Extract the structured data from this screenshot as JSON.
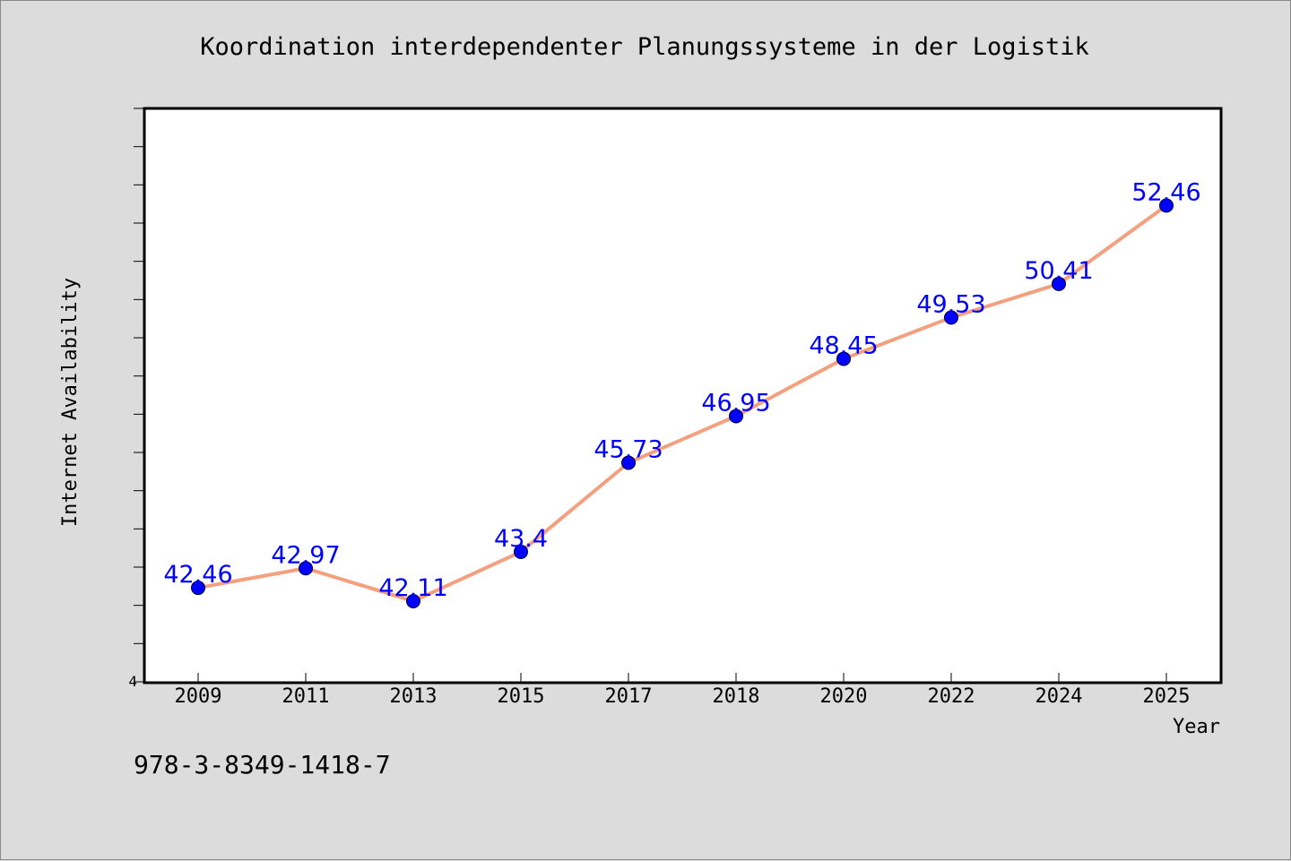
{
  "chart_data": {
    "type": "line",
    "title": "Koordination interdependenter Planungssysteme in der Logistik",
    "xlabel": "Year",
    "ylabel": "Internet Availability",
    "categories": [
      "2009",
      "2011",
      "2013",
      "2015",
      "2017",
      "2018",
      "2020",
      "2022",
      "2024",
      "2025"
    ],
    "series": [
      {
        "values": [
          42.46,
          42.97,
          42.11,
          43.4,
          45.73,
          46.95,
          48.45,
          49.53,
          50.41,
          52.46
        ]
      }
    ],
    "data_labels": [
      "42.46",
      "42.97",
      "42.11",
      "43.4",
      "45.73",
      "46.95",
      "48.45",
      "49.53",
      "50.41",
      "52.46"
    ],
    "ylim": [
      40,
      55
    ],
    "y_tick_labels_shown": [
      "4"
    ],
    "grid": false,
    "line_color": "#f4a07f",
    "marker_color": "#0000ff",
    "label_color": "#0000ff",
    "plot_background": "#ffffff",
    "figure_background": "#dcdcdc"
  },
  "footer": {
    "isbn": "978-3-8349-1418-7"
  }
}
